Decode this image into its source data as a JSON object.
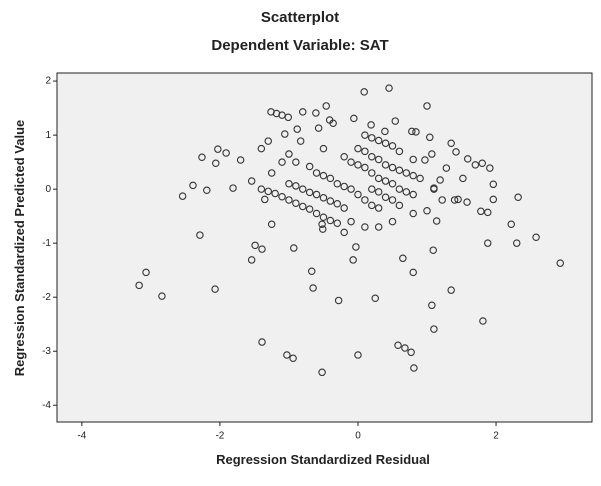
{
  "chart_data": {
    "type": "scatter",
    "title": "Scatterplot",
    "subtitle": "Dependent Variable: SAT",
    "x_label": "Regression Standardized Residual",
    "y_label": "Regression Standardized Predicted Value",
    "xlim": [
      -4.36,
      3.39
    ],
    "ylim": [
      -4.31,
      2.15
    ],
    "xticks": [
      -4,
      -2,
      0,
      2
    ],
    "yticks": [
      -4,
      -3,
      -2,
      -1,
      0,
      1,
      2
    ],
    "grid": false,
    "color": "#333333",
    "background": "#f0f0f0",
    "x": [
      -3.17,
      -3.07,
      -2.84,
      -2.07,
      -2.29,
      -2.54,
      -2.39,
      -2.26,
      -2.19,
      -2.06,
      -2.03,
      -1.91,
      -1.81,
      -1.7,
      -1.54,
      -1.54,
      -1.49,
      -1.39,
      -1.39,
      -1.35,
      -1.3,
      -1.25,
      -1.25,
      -1.06,
      -1.26,
      -1.18,
      -1.1,
      -1.01,
      -1.03,
      -0.94,
      -0.93,
      -0.8,
      -0.67,
      -0.65,
      -0.52,
      -0.52,
      -0.46,
      -0.51,
      -0.28,
      -0.07,
      -0.03,
      0,
      0.09,
      0.25,
      0.45,
      0.58,
      0.68,
      0.77,
      0.81,
      0.8,
      0.65,
      1.07,
      1.1,
      1.35,
      1.09,
      1.14,
      1.0,
      1.81,
      1.88,
      2.3,
      2.22,
      2.32,
      2.58,
      2.93,
      1.96,
      1.96,
      1.91,
      1.8,
      1.88,
      1.78,
      1.58,
      1.45,
      1.52,
      1.59,
      1.42,
      1.35,
      1.28,
      1.19,
      1.22,
      1.1,
      0.97,
      1.07,
      1.04,
      0.78,
      0.84,
      0.54,
      0.39,
      0.19,
      -0.06,
      -0.41,
      -0.36,
      -0.61,
      -0.57,
      -0.88,
      -0.83,
      -1.4,
      -1.3,
      -1.2,
      -1.1,
      -1.0,
      -0.9,
      -0.8,
      -0.7,
      -0.6,
      -0.5,
      -0.4,
      -0.3,
      -1.0,
      -0.9,
      -0.8,
      -0.7,
      -0.6,
      -0.5,
      -0.4,
      -0.3,
      -0.2,
      -0.9,
      -0.7,
      -0.6,
      -0.5,
      -0.4,
      -0.3,
      -0.2,
      -0.1,
      0.0,
      0.1,
      0.2,
      0.3,
      -0.2,
      -0.1,
      0.0,
      0.1,
      0.2,
      0.3,
      0.4,
      0.5,
      0.6,
      0.7,
      0.8,
      0.0,
      0.1,
      0.2,
      0.3,
      0.4,
      0.5,
      0.6,
      0.7,
      0.8,
      0.9,
      0.1,
      0.2,
      0.3,
      0.4,
      0.5,
      0.6,
      0.8,
      0.2,
      0.3,
      0.4,
      0.5,
      0.6,
      0.8,
      1.0,
      1.4,
      -0.5,
      -1.1,
      -1.4,
      -1.0,
      0.1,
      0.3,
      0.5,
      -0.1,
      -0.2,
      1.1,
      1.7
    ],
    "values": [
      -1.78,
      -1.54,
      -1.98,
      -1.85,
      -0.85,
      -0.13,
      0.07,
      0.59,
      -0.02,
      0.48,
      0.74,
      0.67,
      0.02,
      0.54,
      0.15,
      -1.31,
      -1.04,
      -1.11,
      -2.83,
      -0.19,
      0.89,
      0.3,
      -0.65,
      1.02,
      1.43,
      1.4,
      1.37,
      1.33,
      -3.07,
      -3.13,
      -1.09,
      1.43,
      -1.52,
      -1.83,
      -3.39,
      -0.65,
      1.54,
      -0.74,
      -2.06,
      -1.31,
      -1.07,
      -3.07,
      1.8,
      -2.02,
      1.87,
      -2.89,
      -2.94,
      -3.02,
      -3.31,
      -1.54,
      -1.28,
      -2.15,
      -2.59,
      -1.87,
      -1.13,
      -0.59,
      1.54,
      -2.44,
      -1.0,
      -1.0,
      -0.65,
      -0.15,
      -0.89,
      -1.37,
      -0.19,
      0.09,
      0.39,
      0.48,
      -0.43,
      -0.41,
      -0.24,
      -0.19,
      0.2,
      0.56,
      0.69,
      0.85,
      0.39,
      0.17,
      -0.2,
      0.02,
      0.54,
      0.65,
      0.96,
      1.07,
      1.06,
      1.26,
      1.07,
      1.19,
      1.31,
      1.28,
      1.22,
      1.41,
      1.13,
      1.11,
      0.89,
      0.0,
      -0.04,
      -0.08,
      -0.14,
      -0.2,
      -0.26,
      -0.32,
      -0.37,
      -0.45,
      -0.52,
      -0.58,
      -0.63,
      0.1,
      0.06,
      0.0,
      -0.06,
      -0.1,
      -0.16,
      -0.22,
      -0.27,
      -0.35,
      0.5,
      0.42,
      0.3,
      0.25,
      0.2,
      0.1,
      0.05,
      0.0,
      -0.1,
      -0.2,
      -0.3,
      -0.35,
      0.6,
      0.5,
      0.45,
      0.4,
      0.3,
      0.2,
      0.15,
      0.1,
      0.0,
      -0.05,
      -0.1,
      0.75,
      0.7,
      0.6,
      0.55,
      0.45,
      0.4,
      0.35,
      0.3,
      0.25,
      0.2,
      1.0,
      0.95,
      0.9,
      0.85,
      0.8,
      0.7,
      0.55,
      0.0,
      -0.05,
      -0.15,
      -0.2,
      -0.3,
      -0.45,
      -0.4,
      -0.2,
      0.75,
      0.5,
      0.75,
      0.65,
      -0.7,
      -0.7,
      -0.6,
      -0.6,
      -0.8,
      0.0,
      0.45
    ]
  }
}
